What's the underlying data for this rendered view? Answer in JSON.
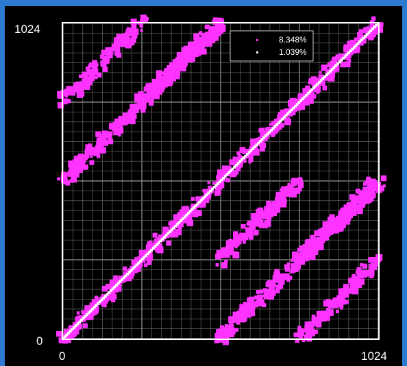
{
  "chart_data": {
    "type": "scatter",
    "title": "",
    "xlabel": "",
    "ylabel": "",
    "xlim": [
      0,
      1024
    ],
    "ylim": [
      0,
      1024
    ],
    "x_tick_labels": [
      "0",
      "1024"
    ],
    "y_tick_labels": [
      "0",
      "1024"
    ],
    "grid": true,
    "legend_position": "top-right",
    "series": [
      {
        "name": "8.348%",
        "color": "#ff33ff",
        "pattern": "block-diagonal bands (matrix sparsity pattern)",
        "bands": [
          {
            "x": [
              0,
              1024
            ],
            "y": [
              0,
              1024
            ],
            "width": 40
          },
          {
            "x": [
              0,
              512
            ],
            "y": [
              512,
              1024
            ],
            "width": 40
          },
          {
            "x": [
              0,
              256
            ],
            "y": [
              768,
              1024
            ],
            "width": 40
          },
          {
            "x": [
              256,
              512
            ],
            "y": [
              768,
              1024
            ],
            "width": 40
          },
          {
            "x": [
              512,
              1024
            ],
            "y": [
              0,
              512
            ],
            "width": 40
          },
          {
            "x": [
              768,
              1024
            ],
            "y": [
              0,
              256
            ],
            "width": 40
          },
          {
            "x": [
              768,
              1024
            ],
            "y": [
              256,
              512
            ],
            "width": 40
          },
          {
            "x": [
              512,
              768
            ],
            "y": [
              256,
              512
            ],
            "width": 40
          }
        ]
      },
      {
        "name": "1.039%",
        "color": "#ffffff",
        "pattern": "main diagonal",
        "bands": [
          {
            "x": [
              0,
              1024
            ],
            "y": [
              0,
              1024
            ],
            "width": 8
          }
        ]
      }
    ]
  }
}
